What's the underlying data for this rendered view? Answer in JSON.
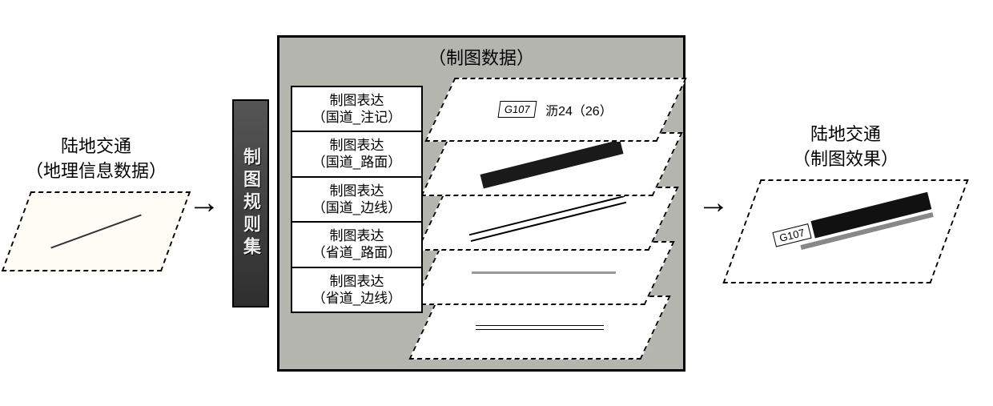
{
  "left": {
    "title_line1": "陆地交通",
    "title_line2": "（地理信息数据）",
    "shape_bg": "#fdfdf5",
    "line_color": "#333333"
  },
  "vbar": {
    "text": "制图规则集",
    "bg_gradient_top": "#555555",
    "bg_gradient_bottom": "#2f2f2f",
    "text_color": "#eeeeee"
  },
  "center": {
    "title": "（制图数据）",
    "panel_bg": "#b5b5b0",
    "rules": [
      {
        "line1": "制图表达",
        "line2": "（国道_注记）"
      },
      {
        "line1": "制图表达",
        "line2": "（国道_路面）"
      },
      {
        "line1": "制图表达",
        "line2": "（国道_边线）"
      },
      {
        "line1": "制图表达",
        "line2": "（省道_路面）"
      },
      {
        "line1": "制图表达",
        "line2": "（省道_边线）"
      }
    ],
    "layer1": {
      "badge": "G107",
      "text": "沥24（26）"
    },
    "layer2": {
      "bar_color": "#1a1a1a"
    },
    "layer3": {
      "line_color": "#000000"
    },
    "layer4": {
      "line_color": "#999999"
    },
    "layer5": {
      "line_color": "#000000"
    }
  },
  "right": {
    "title_line1": "陆地交通",
    "title_line2": "（制图效果）",
    "road_label": "G107",
    "road_dark_color": "#111111",
    "road_gray_color": "#888888"
  },
  "colors": {
    "border": "#000000",
    "background": "#ffffff",
    "dashed_border": "#000000"
  },
  "fonts": {
    "label_size_pt": 16,
    "rule_size_pt": 13,
    "badge_size_pt": 10
  }
}
